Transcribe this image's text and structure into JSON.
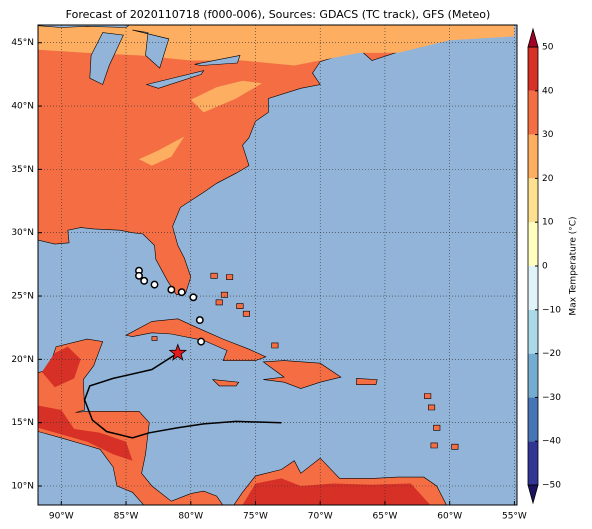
{
  "title": "Forecast of 2020110718 (f000-006), Sources: GDACS (TC track), GFS (Meteo)",
  "map": {
    "lon_lim": [
      -91.8,
      -54.8
    ],
    "lat_lim": [
      8.5,
      46.4
    ],
    "grid": true,
    "lon_ticks": [
      {
        "value": -90,
        "label": "90°W"
      },
      {
        "value": -85,
        "label": "85°W"
      },
      {
        "value": -80,
        "label": "80°W"
      },
      {
        "value": -75,
        "label": "75°W"
      },
      {
        "value": -70,
        "label": "70°W"
      },
      {
        "value": -65,
        "label": "65°W"
      },
      {
        "value": -60,
        "label": "60°W"
      },
      {
        "value": -55,
        "label": "55°W"
      }
    ],
    "lat_ticks": [
      {
        "value": 45,
        "label": "45°N"
      },
      {
        "value": 40,
        "label": "40°N"
      },
      {
        "value": 35,
        "label": "35°N"
      },
      {
        "value": 30,
        "label": "30°N"
      },
      {
        "value": 25,
        "label": "25°N"
      },
      {
        "value": 20,
        "label": "20°N"
      },
      {
        "value": 15,
        "label": "15°N"
      },
      {
        "value": 10,
        "label": "10°N"
      }
    ]
  },
  "colorbar": {
    "label": "Max Temperature (°C)",
    "lim": [
      -50,
      50
    ],
    "ticks": [
      {
        "value": -50,
        "label": "−50"
      },
      {
        "value": -40,
        "label": "−40"
      },
      {
        "value": -30,
        "label": "−30"
      },
      {
        "value": -20,
        "label": "−20"
      },
      {
        "value": -10,
        "label": "−10"
      },
      0,
      10,
      20,
      30,
      40,
      50
    ],
    "colors": [
      "#313695",
      "#4575b4",
      "#74add1",
      "#abd9e9",
      "#e0f3f8",
      "#ffffbf",
      "#fee090",
      "#fdae61",
      "#f46d43",
      "#d73027"
    ],
    "under_color": "#1a1360",
    "over_color": "#a50026"
  }
}
